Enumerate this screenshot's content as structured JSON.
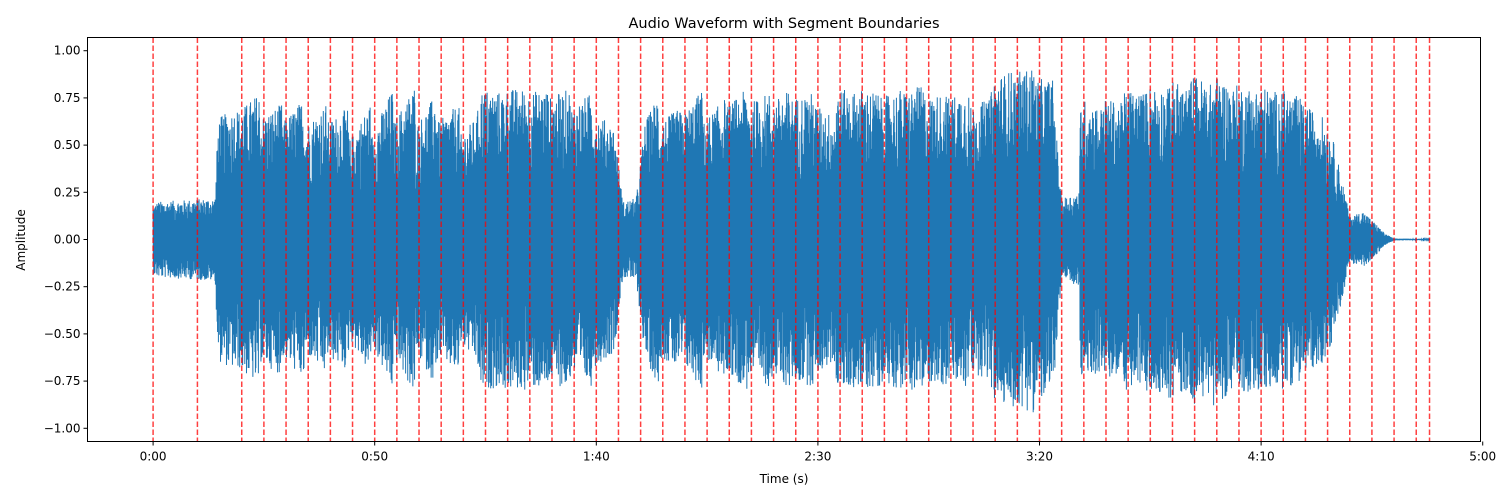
{
  "chart_data": {
    "type": "line",
    "title": "Audio Waveform with Segment Boundaries",
    "xlabel": "Time (s)",
    "ylabel": "Amplitude",
    "xlim": [
      -14.8,
      299.5
    ],
    "ylim": [
      -1.07,
      1.07
    ],
    "x_ticks": [
      0,
      50,
      100,
      150,
      200,
      250,
      300
    ],
    "x_tick_labels": [
      "0:00",
      "0:50",
      "1:40",
      "2:30",
      "3:20",
      "4:10",
      "5:00"
    ],
    "y_ticks": [
      -1.0,
      -0.75,
      -0.5,
      -0.25,
      0.0,
      0.25,
      0.5,
      0.75,
      1.0
    ],
    "y_tick_labels": [
      "−1.00",
      "−0.75",
      "−0.50",
      "−0.25",
      "0.00",
      "0.25",
      "0.50",
      "0.75",
      "1.00"
    ],
    "grid": false,
    "series": [
      {
        "color": "#1f77b4",
        "duration": 288.0,
        "envelope_times": [
          0,
          1,
          14,
          14.6,
          15,
          19,
          19.2,
          24,
          24.2,
          29,
          29.2,
          34,
          34.2,
          39,
          39.2,
          44,
          44.2,
          49,
          49.2,
          54,
          54.2,
          59,
          59.2,
          64,
          64.2,
          69,
          69.2,
          73,
          74,
          74.2,
          79,
          79.2,
          84,
          84.2,
          89,
          89.2,
          94,
          94.2,
          99,
          99.2,
          104,
          106,
          109,
          111,
          114,
          114.2,
          119,
          119.2,
          124,
          124.2,
          129,
          129.2,
          134,
          134.2,
          139,
          139.2,
          144,
          144.2,
          149,
          149.2,
          154,
          154.2,
          159,
          159.2,
          164,
          164.2,
          169,
          169.2,
          174,
          174.2,
          179,
          179.2,
          184,
          184.2,
          189,
          189.2,
          194,
          194.2,
          199,
          199.2,
          203,
          204,
          205,
          209,
          209.2,
          214,
          214.2,
          219,
          219.2,
          224,
          224.2,
          229,
          229.2,
          234,
          234.2,
          239,
          239.2,
          244,
          244.2,
          249,
          249.2,
          254,
          254.2,
          259,
          259.2,
          264,
          266,
          268,
          270,
          273,
          276,
          278,
          280,
          288
        ],
        "envelope_values": [
          0.18,
          0.2,
          0.22,
          0.6,
          0.65,
          0.7,
          0.68,
          0.78,
          0.65,
          0.72,
          0.62,
          0.75,
          0.6,
          0.72,
          0.62,
          0.7,
          0.52,
          0.72,
          0.55,
          0.8,
          0.62,
          0.82,
          0.6,
          0.78,
          0.62,
          0.72,
          0.55,
          0.65,
          0.8,
          0.8,
          0.78,
          0.8,
          0.8,
          0.78,
          0.8,
          0.75,
          0.8,
          0.7,
          0.78,
          0.68,
          0.6,
          0.2,
          0.22,
          0.62,
          0.78,
          0.62,
          0.7,
          0.65,
          0.8,
          0.62,
          0.75,
          0.7,
          0.8,
          0.72,
          0.78,
          0.72,
          0.8,
          0.75,
          0.78,
          0.72,
          0.65,
          0.8,
          0.78,
          0.8,
          0.78,
          0.75,
          0.8,
          0.78,
          0.82,
          0.75,
          0.78,
          0.75,
          0.8,
          0.7,
          0.75,
          0.85,
          0.9,
          0.88,
          0.92,
          0.85,
          0.85,
          0.5,
          0.22,
          0.25,
          0.75,
          0.7,
          0.75,
          0.72,
          0.8,
          0.78,
          0.82,
          0.8,
          0.85,
          0.8,
          0.88,
          0.82,
          0.88,
          0.8,
          0.82,
          0.8,
          0.82,
          0.78,
          0.8,
          0.75,
          0.72,
          0.65,
          0.55,
          0.35,
          0.12,
          0.15,
          0.08,
          0.03,
          0.005,
          0.003
        ]
      }
    ],
    "boundaries": {
      "color": "#ff0000",
      "style": "dashed",
      "times": [
        0,
        10,
        20,
        25,
        30,
        35,
        40,
        45,
        50,
        55,
        60,
        65,
        70,
        75,
        80,
        85,
        90,
        95,
        100,
        105,
        110,
        115,
        120,
        125,
        130,
        135,
        140,
        145,
        150,
        155,
        160,
        165,
        170,
        175,
        180,
        185,
        190,
        195,
        200,
        205,
        210,
        215,
        220,
        225,
        230,
        235,
        240,
        245,
        250,
        255,
        260,
        265,
        270,
        275,
        280,
        285,
        288
      ]
    }
  }
}
